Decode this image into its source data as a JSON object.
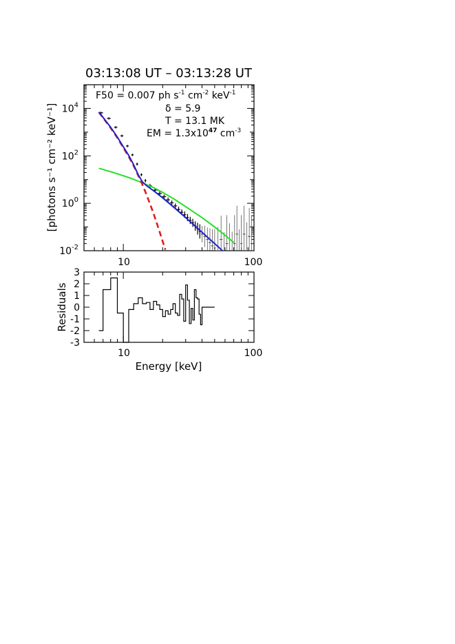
{
  "chart_data": [
    {
      "type": "line",
      "title": "03:13:08 UT – 03:13:28 UT",
      "xlabel": "",
      "ylabel": "[photons s⁻¹ cm⁻² keV⁻¹]",
      "x_scale": "log",
      "y_scale": "log",
      "xlim": [
        5,
        100
      ],
      "ylim": [
        0.01,
        100000
      ],
      "x_ticks": [
        10,
        100
      ],
      "y_ticks": [
        {
          "value": 0.01,
          "base": "10",
          "exp": "-2"
        },
        {
          "value": 1,
          "base": "10",
          "exp": "0"
        },
        {
          "value": 100,
          "base": "10",
          "exp": "2"
        },
        {
          "value": 10000,
          "base": "10",
          "exp": "4"
        }
      ],
      "annotations": {
        "f50": {
          "prefix": "F50 = 0.007 ph s",
          "e1": "-1",
          "m1": " cm",
          "e2": "-2",
          "m2": " keV",
          "e3": "-1"
        },
        "delta": "δ = 5.9",
        "temp": "T = 13.1 MK",
        "em": {
          "prefix": "EM = 1.3x10",
          "e1": "47",
          "m1": " cm",
          "e2": "-3"
        }
      },
      "series": [],
      "curves": {
        "total_fit": {
          "color": "#1f1fd0",
          "x": [
            6.5,
            7,
            8,
            9,
            10,
            11,
            12,
            13,
            14,
            15,
            17,
            20,
            25,
            30,
            40,
            50,
            60,
            70
          ],
          "y": [
            7000,
            4200,
            1600,
            620,
            240,
            105,
            42,
            16,
            8.0,
            5.6,
            3.4,
            1.7,
            0.6,
            0.25,
            0.06,
            0.02,
            0.008,
            0.0035
          ]
        },
        "thermal": {
          "color": "#e01b1b",
          "dashed": true,
          "x": [
            6.5,
            7,
            8,
            9,
            10,
            11,
            12,
            13,
            14,
            15,
            16,
            17,
            18,
            19,
            20,
            21
          ],
          "y": [
            7000,
            4000,
            1500,
            580,
            220,
            92,
            38,
            15,
            6.1,
            2.4,
            0.95,
            0.38,
            0.15,
            0.06,
            0.025,
            0.011
          ]
        },
        "nonthermal": {
          "color": "#22e022",
          "x": [
            6.5,
            7,
            8,
            9,
            10,
            11,
            12,
            13,
            14,
            15,
            17,
            20,
            25,
            30,
            40,
            50,
            60,
            70
          ],
          "y": [
            30,
            26.5,
            21.5,
            17.5,
            14.5,
            12.2,
            10.2,
            8.6,
            7.3,
            6.2,
            4.6,
            2.9,
            1.4,
            0.72,
            0.25,
            0.1,
            0.045,
            0.022
          ]
        }
      },
      "data_points": {
        "x": [
          6.75,
          7.75,
          8.75,
          9.75,
          10.75,
          11.75,
          12.75,
          13.75,
          14.75,
          16,
          17.5,
          19,
          20.5,
          22,
          23.5,
          25,
          26.5,
          28,
          29.5,
          31,
          32.5,
          34,
          35.5,
          37,
          38.5,
          40,
          42,
          44,
          46,
          48,
          50,
          53,
          56,
          59,
          62,
          65,
          68,
          71,
          74,
          77,
          80,
          84,
          88,
          92,
          96
        ],
        "y": [
          6500,
          3800,
          1600,
          700,
          260,
          110,
          45,
          16,
          9,
          5.5,
          3.6,
          2.6,
          1.9,
          1.4,
          1.05,
          0.78,
          0.55,
          0.42,
          0.33,
          0.25,
          0.19,
          0.15,
          0.11,
          0.085,
          0.065,
          0.05,
          0.04,
          0.03,
          0.022,
          0.016,
          0.013,
          0.01,
          0.03,
          0.006,
          0.02,
          0.009,
          0.004,
          0.02,
          0.05,
          0.005,
          0.02,
          0.05,
          0.01,
          0.04,
          0.02
        ],
        "xerr": [
          0.25,
          0.25,
          0.25,
          0.25,
          0.25,
          0.25,
          0.25,
          0.25,
          0.25,
          0.5,
          0.75,
          0.75,
          0.75,
          0.75,
          0.75,
          0.75,
          0.75,
          0.75,
          0.75,
          0.75,
          0.75,
          0.75,
          0.75,
          0.75,
          0.75,
          0.75,
          1,
          1,
          1,
          1,
          1,
          1.5,
          1.5,
          1.5,
          1.5,
          1.5,
          1.5,
          1.5,
          1.5,
          1.5,
          1.5,
          2,
          2,
          2,
          2
        ],
        "yerr": [
          0.05,
          0.05,
          0.05,
          0.05,
          0.05,
          0.05,
          0.06,
          0.06,
          0.07,
          0.08,
          0.08,
          0.09,
          0.09,
          0.1,
          0.1,
          0.1,
          0.12,
          0.12,
          0.14,
          0.15,
          0.15,
          0.17,
          0.2,
          0.25,
          0.3,
          0.35,
          0.45,
          0.5,
          0.6,
          0.7,
          0.8,
          1,
          1,
          1,
          1.2,
          1.2,
          1.2,
          1.2,
          1.2,
          1.2,
          1.2,
          1.2,
          1.2,
          1.2,
          1.2
        ]
      }
    },
    {
      "type": "line",
      "title": "",
      "xlabel": "Energy [keV]",
      "ylabel": "Residuals",
      "x_scale": "log",
      "xlim": [
        5,
        100
      ],
      "ylim": [
        -3,
        3
      ],
      "x_ticks": [
        10,
        100
      ],
      "y_ticks": [
        3,
        2,
        1,
        0,
        -1,
        -2,
        -3
      ],
      "step_edges": [
        6.5,
        7,
        8,
        9,
        10,
        11,
        12,
        13,
        14,
        15,
        16,
        17,
        18,
        19,
        20,
        21,
        22,
        23,
        24,
        25,
        26,
        27,
        28,
        29,
        30,
        31,
        32,
        33,
        34,
        35,
        36,
        37,
        38,
        39,
        40,
        42,
        44,
        46,
        50
      ],
      "values": [
        -2,
        1.5,
        2.5,
        -0.5,
        -3,
        -0.2,
        0.3,
        0.8,
        0.3,
        0.4,
        -0.2,
        0.5,
        0.2,
        -0.2,
        -0.8,
        -0.3,
        -0.6,
        -0.2,
        0.3,
        -0.5,
        -0.7,
        1.1,
        0.7,
        -1.2,
        1.9,
        0.6,
        -1.4,
        -0.1,
        -1.1,
        1.5,
        0.8,
        0.7,
        -0.6,
        -1.5,
        0.0,
        0.0,
        0.0,
        0.0
      ]
    }
  ]
}
